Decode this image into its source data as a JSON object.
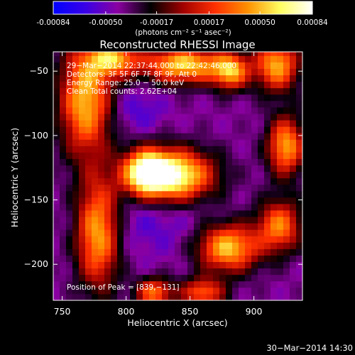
{
  "colorbar": {
    "ticks": [
      "-0.00084",
      "-0.00050",
      "-0.00017",
      "0.00017",
      "0.00050",
      "0.00084"
    ],
    "values": [
      -0.00084,
      -0.0005,
      -0.00017,
      0.00017,
      0.0005,
      0.00084
    ],
    "range": [
      -0.00084,
      0.00084
    ],
    "unit_label": "(photons cm⁻² s⁻¹ asec⁻²)",
    "colors": [
      "#0000ff",
      "#3a00e6",
      "#8a00a0",
      "#000000",
      "#a00000",
      "#ff3000",
      "#ff9000",
      "#ffff60",
      "#ffffff"
    ]
  },
  "chart_data": {
    "type": "heatmap",
    "title": "Reconstructed RHESSI Image",
    "xlabel": "Heliocentric X (arcsec)",
    "ylabel": "Heliocentric Y (arcsec)",
    "xlim": [
      743,
      938
    ],
    "ylim": [
      -228,
      -35
    ],
    "xticks": [
      750,
      800,
      850,
      900
    ],
    "yticks": [
      -50,
      -100,
      -150,
      -200
    ],
    "xtick_labels": [
      "750",
      "800",
      "850",
      "900"
    ],
    "ytick_labels": [
      "−50",
      "−100",
      "−150",
      "−200"
    ],
    "annotations": {
      "time": "29−Mar−2014 22:37:44.000 to 22:42:46.000",
      "detectors": "Detectors: 3F 5F 6F 7F 8F 9F, Att 0",
      "energy": "Energy Range: 25.0 − 50.0 keV",
      "clean": "Clean    Total counts: 2.62E+04",
      "peak": "Position of Peak = [839,−131]"
    },
    "peak": [
      839,
      -131
    ],
    "sources": [
      {
        "x": 836,
        "y": -131,
        "sx": 22,
        "sy": 14,
        "amp": 0.00084
      },
      {
        "x": 815,
        "y": -128,
        "sx": 12,
        "sy": 12,
        "amp": 0.00045
      },
      {
        "x": 768,
        "y": -72,
        "sx": 14,
        "sy": 30,
        "amp": 0.00052
      },
      {
        "x": 790,
        "y": -40,
        "sx": 14,
        "sy": 10,
        "amp": 0.00042
      },
      {
        "x": 845,
        "y": -45,
        "sx": 22,
        "sy": 10,
        "amp": 0.00058
      },
      {
        "x": 882,
        "y": -50,
        "sx": 10,
        "sy": 10,
        "amp": 0.0004
      },
      {
        "x": 918,
        "y": -45,
        "sx": 12,
        "sy": 14,
        "amp": 0.00048
      },
      {
        "x": 925,
        "y": -108,
        "sx": 10,
        "sy": 16,
        "amp": 0.00046
      },
      {
        "x": 778,
        "y": -175,
        "sx": 12,
        "sy": 30,
        "amp": 0.0005
      },
      {
        "x": 880,
        "y": -187,
        "sx": 17,
        "sy": 13,
        "amp": 0.00054
      },
      {
        "x": 920,
        "y": -170,
        "sx": 12,
        "sy": 14,
        "amp": 0.00036
      },
      {
        "x": 822,
        "y": -222,
        "sx": 10,
        "sy": 8,
        "amp": 0.00034
      },
      {
        "x": 860,
        "y": -222,
        "sx": 12,
        "sy": 8,
        "amp": 0.0003
      },
      {
        "x": 810,
        "y": -80,
        "sx": 14,
        "sy": 12,
        "amp": -0.00018
      },
      {
        "x": 820,
        "y": -165,
        "sx": 30,
        "sy": 20,
        "amp": -0.00016
      }
    ]
  },
  "footer": {
    "timestamp": "30−Mar−2014 14:30"
  }
}
